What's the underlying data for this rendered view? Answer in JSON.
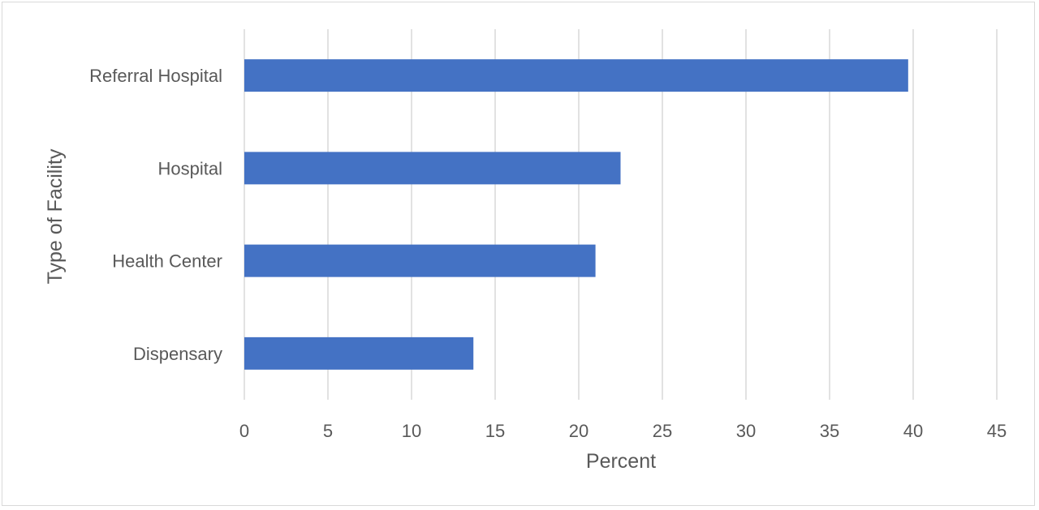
{
  "chart_data": {
    "type": "bar",
    "orientation": "horizontal",
    "categories": [
      "Referral Hospital",
      "Hospital",
      "Health Center",
      "Dispensary"
    ],
    "values": [
      39.7,
      22.5,
      21.0,
      13.7
    ],
    "xlabel": "Percent",
    "ylabel": "Type of Facility",
    "xlim": [
      0,
      45
    ],
    "xticks": [
      0,
      5,
      10,
      15,
      20,
      25,
      30,
      35,
      40,
      45
    ],
    "grid": "vertical",
    "legend": "none",
    "bar_color": "#4472c4",
    "grid_color": "#d9d9d9",
    "text_color": "#595959"
  }
}
